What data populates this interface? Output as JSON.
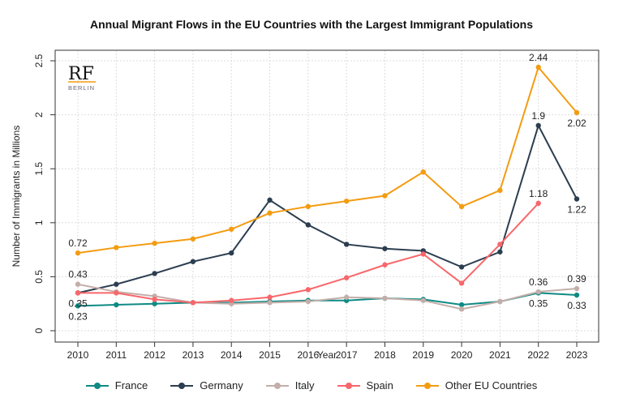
{
  "chart_data": {
    "type": "line",
    "title": "Annual Migrant Flows in the EU Countries with the Largest Immigrant Populations",
    "xlabel": "Year",
    "ylabel": "Number of Immigrants in Millions",
    "x": [
      2010,
      2011,
      2012,
      2013,
      2014,
      2015,
      2016,
      2017,
      2018,
      2019,
      2020,
      2021,
      2022,
      2023
    ],
    "ylim": [
      -0.1,
      2.6
    ],
    "yticks": [
      0,
      0.5,
      1,
      1.5,
      2,
      2.5
    ],
    "ytick_labels": [
      "0",
      "0.5",
      "1",
      "1.5",
      "2",
      "2.5"
    ],
    "grid": true,
    "legend": "bottom",
    "series": [
      {
        "name": "France",
        "color": "#0e8a84",
        "values": [
          0.23,
          0.24,
          0.25,
          0.26,
          0.26,
          0.27,
          0.28,
          0.28,
          0.3,
          0.29,
          0.24,
          0.27,
          0.35,
          0.33
        ]
      },
      {
        "name": "Germany",
        "color": "#2c3e50",
        "values": [
          0.35,
          0.43,
          0.53,
          0.64,
          0.72,
          1.21,
          0.98,
          0.8,
          0.76,
          0.74,
          0.59,
          0.73,
          1.9,
          1.22
        ]
      },
      {
        "name": "Italy",
        "color": "#c4aeaa",
        "values": [
          0.43,
          0.36,
          0.32,
          0.26,
          0.25,
          0.26,
          0.27,
          0.31,
          0.3,
          0.28,
          0.2,
          0.27,
          0.36,
          0.39
        ]
      },
      {
        "name": "Spain",
        "color": "#f7676b",
        "values": [
          0.35,
          0.35,
          0.29,
          0.26,
          0.28,
          0.31,
          0.38,
          0.49,
          0.61,
          0.71,
          0.44,
          0.8,
          1.18,
          null
        ]
      },
      {
        "name": "Other EU Countries",
        "color": "#f39c12",
        "values": [
          0.72,
          0.77,
          0.81,
          0.85,
          0.94,
          1.09,
          1.15,
          1.2,
          1.25,
          1.47,
          1.15,
          1.3,
          2.44,
          2.02
        ]
      }
    ],
    "annotations": [
      {
        "text": "0.72",
        "x": 2010,
        "y": 0.72,
        "pos": "above"
      },
      {
        "text": "0.43",
        "x": 2010,
        "y": 0.43,
        "pos": "above"
      },
      {
        "text": "0.35",
        "x": 2010,
        "y": 0.35,
        "pos": "below"
      },
      {
        "text": "0.23",
        "x": 2010,
        "y": 0.23,
        "pos": "below"
      },
      {
        "text": "2.44",
        "x": 2022,
        "y": 2.44,
        "pos": "above"
      },
      {
        "text": "1.9",
        "x": 2022,
        "y": 1.9,
        "pos": "above"
      },
      {
        "text": "1.18",
        "x": 2022,
        "y": 1.18,
        "pos": "above"
      },
      {
        "text": "0.36",
        "x": 2022,
        "y": 0.36,
        "pos": "above"
      },
      {
        "text": "0.35",
        "x": 2022,
        "y": 0.35,
        "pos": "below"
      },
      {
        "text": "2.02",
        "x": 2023,
        "y": 2.02,
        "pos": "below"
      },
      {
        "text": "1.22",
        "x": 2023,
        "y": 1.22,
        "pos": "below"
      },
      {
        "text": "0.39",
        "x": 2023,
        "y": 0.39,
        "pos": "above"
      },
      {
        "text": "0.33",
        "x": 2023,
        "y": 0.33,
        "pos": "below"
      }
    ]
  },
  "logo": {
    "main": "RF",
    "sub": "BERLIN",
    "accent": "#f39c12"
  }
}
